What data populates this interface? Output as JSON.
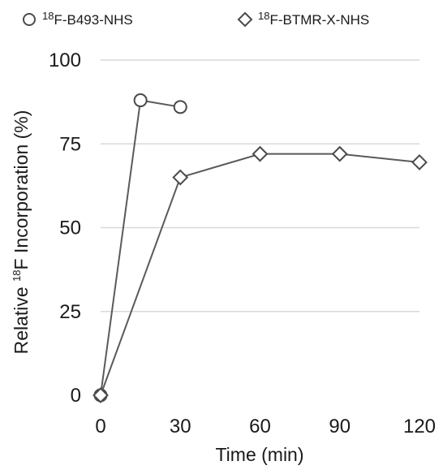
{
  "chart_data": {
    "type": "line",
    "title": "",
    "xlabel": "Time (min)",
    "ylabel": {
      "prefix": "Relative ",
      "superscript": "18",
      "suffix": "F Incorporation (%)"
    },
    "xlim": [
      0,
      120
    ],
    "ylim": [
      0,
      100
    ],
    "x_ticks": [
      0,
      30,
      60,
      90,
      120
    ],
    "y_ticks": [
      0,
      25,
      50,
      75,
      100
    ],
    "grid": "horizontal",
    "legend_position": "top",
    "series": [
      {
        "name": {
          "superscript": "18",
          "text": "F-B493-NHS"
        },
        "marker": "circle",
        "x": [
          0,
          15,
          30
        ],
        "y": [
          0,
          88,
          86
        ]
      },
      {
        "name": {
          "superscript": "18",
          "text": "F-BTMR-X-NHS"
        },
        "marker": "diamond",
        "x": [
          0,
          30,
          60,
          90,
          120
        ],
        "y": [
          0,
          65,
          72,
          72,
          69.5
        ]
      }
    ]
  }
}
